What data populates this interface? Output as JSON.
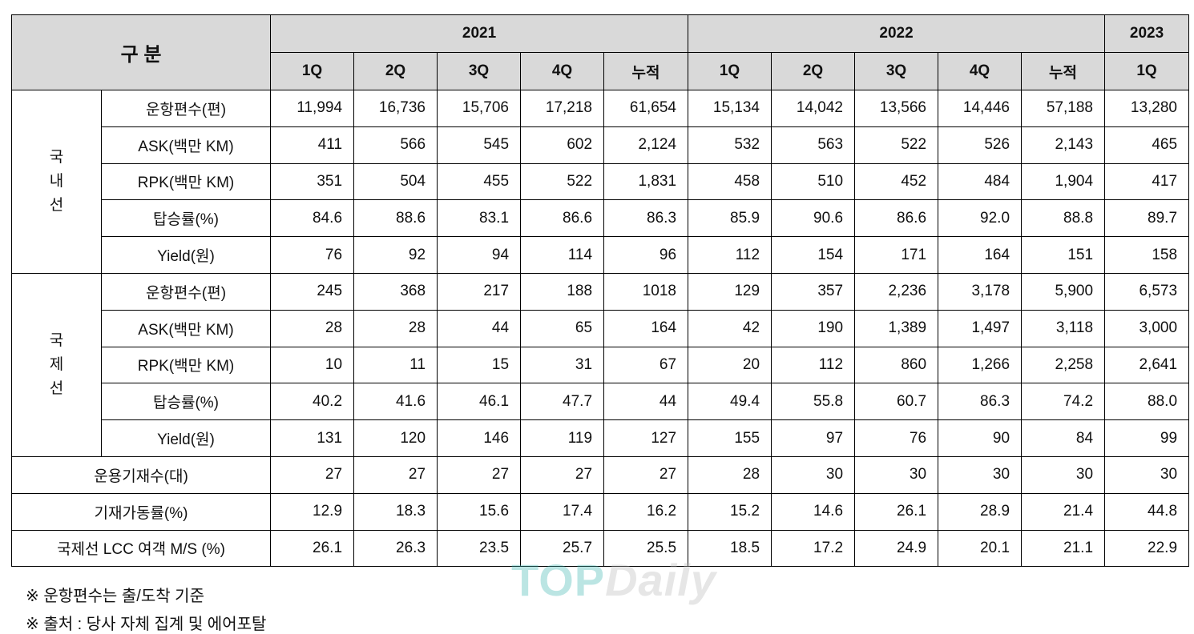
{
  "header": {
    "gubun": "구 분",
    "years": [
      "2021",
      "2022",
      "2023"
    ],
    "quarters_2021": [
      "1Q",
      "2Q",
      "3Q",
      "4Q",
      "누적"
    ],
    "quarters_2022": [
      "1Q",
      "2Q",
      "3Q",
      "4Q",
      "누적"
    ],
    "quarters_2023": [
      "1Q"
    ]
  },
  "domestic": {
    "group_label": [
      "국",
      "내",
      "선"
    ],
    "rows": [
      {
        "label": "운항편수(편)",
        "values": [
          "11,994",
          "16,736",
          "15,706",
          "17,218",
          "61,654",
          "15,134",
          "14,042",
          "13,566",
          "14,446",
          "57,188",
          "13,280"
        ]
      },
      {
        "label": "ASK(백만 KM)",
        "values": [
          "411",
          "566",
          "545",
          "602",
          "2,124",
          "532",
          "563",
          "522",
          "526",
          "2,143",
          "465"
        ]
      },
      {
        "label": "RPK(백만 KM)",
        "values": [
          "351",
          "504",
          "455",
          "522",
          "1,831",
          "458",
          "510",
          "452",
          "484",
          "1,904",
          "417"
        ]
      },
      {
        "label": "탑승률(%)",
        "values": [
          "84.6",
          "88.6",
          "83.1",
          "86.6",
          "86.3",
          "85.9",
          "90.6",
          "86.6",
          "92.0",
          "88.8",
          "89.7"
        ]
      },
      {
        "label": "Yield(원)",
        "values": [
          "76",
          "92",
          "94",
          "114",
          "96",
          "112",
          "154",
          "171",
          "164",
          "151",
          "158"
        ]
      }
    ]
  },
  "international": {
    "group_label": [
      "국",
      "제",
      "선"
    ],
    "rows": [
      {
        "label": "운항편수(편)",
        "values": [
          "245",
          "368",
          "217",
          "188",
          "1018",
          "129",
          "357",
          "2,236",
          "3,178",
          "5,900",
          "6,573"
        ]
      },
      {
        "label": "ASK(백만 KM)",
        "values": [
          "28",
          "28",
          "44",
          "65",
          "164",
          "42",
          "190",
          "1,389",
          "1,497",
          "3,118",
          "3,000"
        ]
      },
      {
        "label": "RPK(백만 KM)",
        "values": [
          "10",
          "11",
          "15",
          "31",
          "67",
          "20",
          "112",
          "860",
          "1,266",
          "2,258",
          "2,641"
        ]
      },
      {
        "label": "탑승률(%)",
        "values": [
          "40.2",
          "41.6",
          "46.1",
          "47.7",
          "44",
          "49.4",
          "55.8",
          "60.7",
          "86.3",
          "74.2",
          "88.0"
        ]
      },
      {
        "label": "Yield(원)",
        "values": [
          "131",
          "120",
          "146",
          "119",
          "127",
          "155",
          "97",
          "76",
          "90",
          "84",
          "99"
        ]
      }
    ]
  },
  "summary": [
    {
      "label": "운용기재수(대)",
      "values": [
        "27",
        "27",
        "27",
        "27",
        "27",
        "28",
        "30",
        "30",
        "30",
        "30",
        "30"
      ]
    },
    {
      "label": "기재가동률(%)",
      "values": [
        "12.9",
        "18.3",
        "15.6",
        "17.4",
        "16.2",
        "15.2",
        "14.6",
        "26.1",
        "28.9",
        "21.4",
        "44.8"
      ]
    },
    {
      "label": "국제선 LCC 여객 M/S (%)",
      "values": [
        "26.1",
        "26.3",
        "23.5",
        "25.7",
        "25.5",
        "18.5",
        "17.2",
        "24.9",
        "20.1",
        "21.1",
        "22.9"
      ]
    }
  ],
  "footnotes": [
    "※ 운항편수는 출/도착 기준",
    "※ 출처 : 당사 자체 집계 및 에어포탈"
  ],
  "watermark": {
    "part1": "TOP",
    "part2": "Daily"
  }
}
